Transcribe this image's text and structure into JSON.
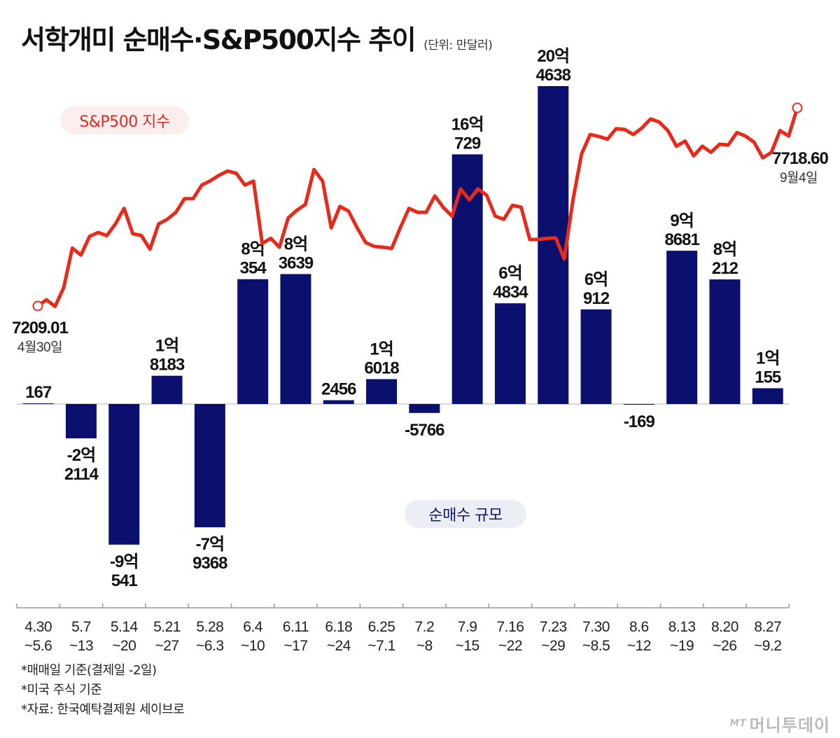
{
  "title": "서학개미 순매수·S&P500지수 추이",
  "unit": "(단위: 만달러)",
  "legend": {
    "sp500": "S&P500 지수",
    "net_buy": "순매수 규모"
  },
  "colors": {
    "bar": "#0b0f6e",
    "line": "#e62a1c",
    "sp500_pill_bg": "#fdeeee",
    "net_pill_bg": "#eceef6"
  },
  "notes": [
    "*매매일 기준(결제일 -2일)",
    "*미국 주식 기준",
    "*자료: 한국예탁결제원 세이브로"
  ],
  "logo": {
    "mark": "MT",
    "text": "머니투데이"
  },
  "chart_data": {
    "type": "bar",
    "categories": [
      [
        "4.30",
        "~5.6"
      ],
      [
        "5.7",
        "~13"
      ],
      [
        "5.14",
        "~20"
      ],
      [
        "5.21",
        "~27"
      ],
      [
        "5.28",
        "~6.3"
      ],
      [
        "6.4",
        "~10"
      ],
      [
        "6.11",
        "~17"
      ],
      [
        "6.18",
        "~24"
      ],
      [
        "6.25",
        "~7.1"
      ],
      [
        "7.2",
        "~8"
      ],
      [
        "7.9",
        "~15"
      ],
      [
        "7.16",
        "~22"
      ],
      [
        "7.23",
        "~29"
      ],
      [
        "7.30",
        "~8.5"
      ],
      [
        "8.6",
        "~12"
      ],
      [
        "8.13",
        "~19"
      ],
      [
        "8.20",
        "~26"
      ],
      [
        "8.27",
        "~9.2"
      ]
    ],
    "net_buy": {
      "name": "순매수 규모",
      "values": [
        167,
        -22114,
        -90541,
        18183,
        -79368,
        80354,
        83639,
        2456,
        16018,
        -5766,
        160729,
        64834,
        204638,
        60912,
        -169,
        98681,
        80212,
        10155
      ],
      "labels": [
        [
          "167"
        ],
        [
          "-2억",
          "2114"
        ],
        [
          "-9억",
          "541"
        ],
        [
          "1억",
          "8183"
        ],
        [
          "-7억",
          "9368"
        ],
        [
          "8억",
          "354"
        ],
        [
          "8억",
          "3639"
        ],
        [
          "2456"
        ],
        [
          "1억",
          "6018"
        ],
        [
          "-5766"
        ],
        [
          "16억",
          "729"
        ],
        [
          "6억",
          "4834"
        ],
        [
          "20억",
          "4638"
        ],
        [
          "6억",
          "912"
        ],
        [
          "-169"
        ],
        [
          "9억",
          "8681"
        ],
        [
          "8억",
          "212"
        ],
        [
          "1억",
          "155"
        ]
      ]
    },
    "sp500": {
      "name": "S&P500 지수",
      "start": {
        "value": "7209.01",
        "date": "4월30일"
      },
      "end": {
        "value": "7718.60",
        "date": "9월4일"
      },
      "values": [
        7209.01,
        7225,
        7208,
        7256,
        7358,
        7340,
        7388,
        7398,
        7390,
        7420,
        7460,
        7395,
        7390,
        7355,
        7420,
        7432,
        7450,
        7485,
        7485,
        7520,
        7531,
        7545,
        7556,
        7550,
        7520,
        7530,
        7370,
        7383,
        7360,
        7435,
        7455,
        7470,
        7560,
        7530,
        7410,
        7465,
        7453,
        7410,
        7372,
        7362,
        7360,
        7357,
        7410,
        7460,
        7450,
        7450,
        7492,
        7462,
        7440,
        7510,
        7482,
        7510,
        7494,
        7440,
        7432,
        7468,
        7463,
        7380,
        7380,
        7383,
        7384,
        7330,
        7480,
        7600,
        7650,
        7645,
        7638,
        7665,
        7663,
        7650,
        7667,
        7690,
        7682,
        7660,
        7620,
        7633,
        7595,
        7620,
        7604,
        7625,
        7623,
        7655,
        7646,
        7630,
        7590,
        7604,
        7660,
        7646,
        7718.6
      ],
      "ylim": [
        7120,
        7800
      ]
    }
  }
}
